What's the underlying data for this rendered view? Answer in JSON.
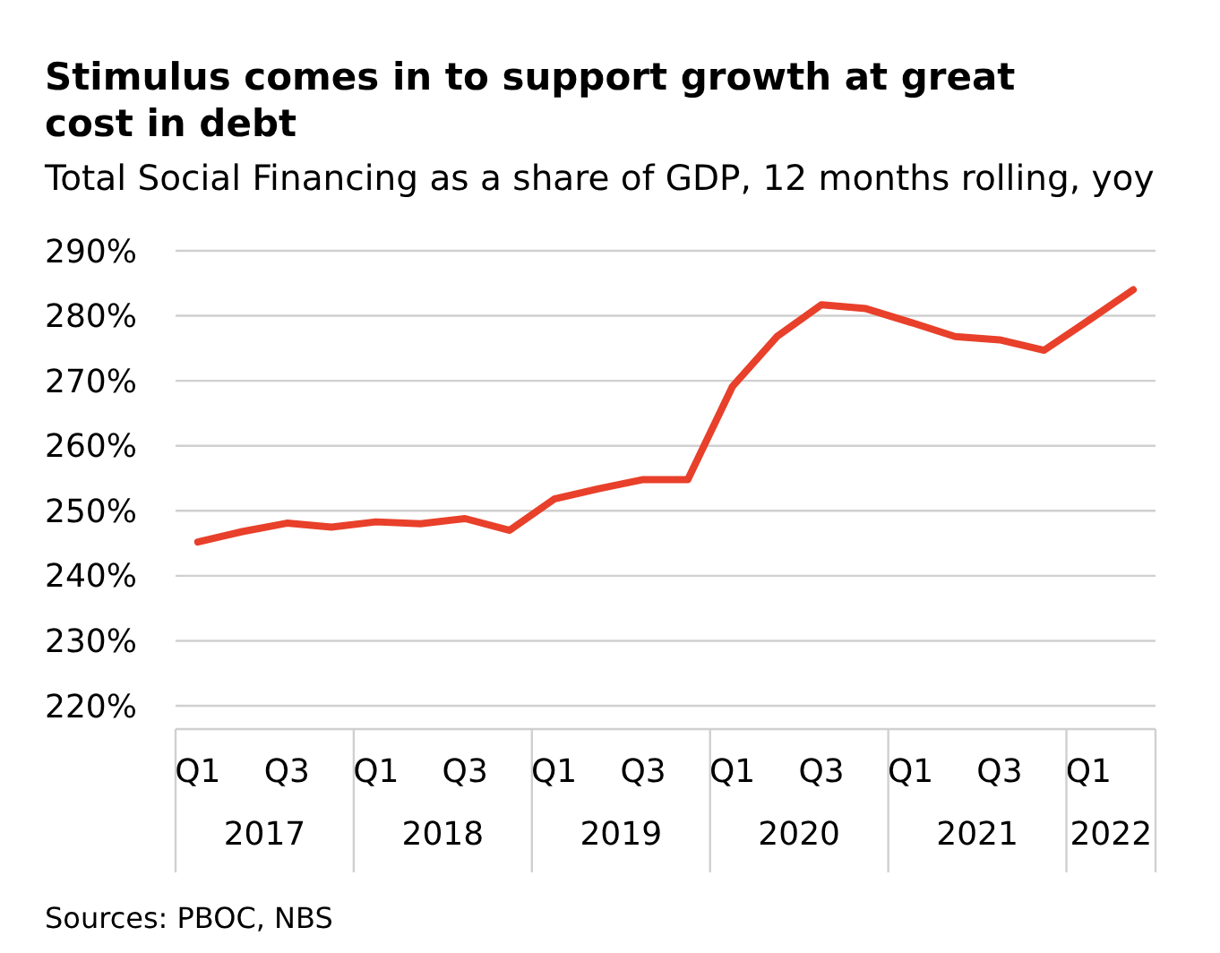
{
  "chart_data": {
    "type": "line",
    "title": "Stimulus comes in to support growth at great cost in debt",
    "subtitle": "Total Social Financing as a share of GDP, 12 months rolling, yoy",
    "categories": [
      "Q1",
      null,
      "Q3",
      null,
      "Q1",
      null,
      "Q3",
      null,
      "Q1",
      null,
      "Q3",
      null,
      "Q1",
      null,
      "Q3",
      null,
      "Q1",
      null,
      "Q3",
      null,
      "Q1",
      null
    ],
    "series": [
      {
        "color": "#e8402a",
        "values": [
          245.2,
          246.8,
          248.1,
          247.5,
          248.3,
          248.0,
          248.8,
          247.0,
          251.8,
          253.4,
          254.8,
          254.8,
          269.1,
          276.8,
          281.7,
          281.1,
          279.0,
          276.8,
          276.3,
          274.7,
          279.3,
          284.0
        ]
      }
    ],
    "ylim": [
      220,
      290
    ],
    "yticks": [
      {
        "value": 220,
        "label": "220%"
      },
      {
        "value": 230,
        "label": "230%"
      },
      {
        "value": 240,
        "label": "240%"
      },
      {
        "value": 250,
        "label": "250%"
      },
      {
        "value": 260,
        "label": "260%"
      },
      {
        "value": 270,
        "label": "270%"
      },
      {
        "value": 280,
        "label": "280%"
      },
      {
        "value": 290,
        "label": "290%"
      }
    ],
    "grid": "y",
    "marker": "none",
    "line_style": "solid",
    "annotations": [
      "2017",
      "2018",
      "2019",
      "2020",
      "2021",
      "2022",
      "Sources: PBOC, NBS"
    ]
  }
}
